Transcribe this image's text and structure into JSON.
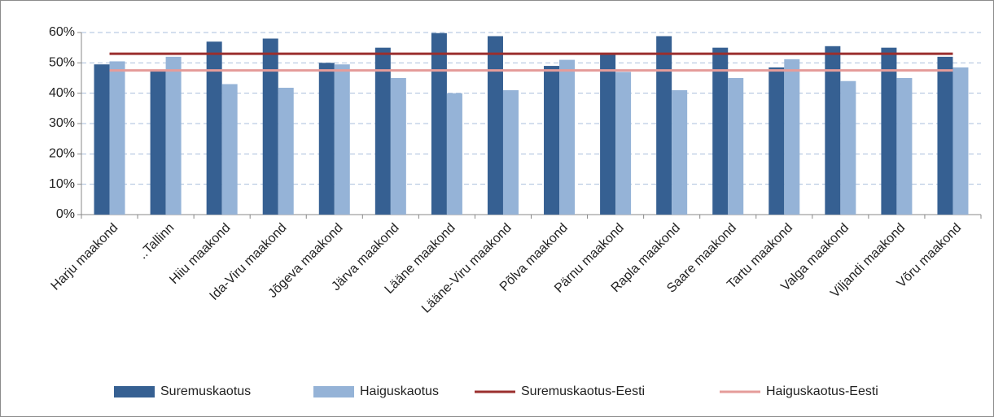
{
  "chart_data": {
    "type": "bar",
    "categories": [
      "Harju maakond",
      "..Tallinn",
      "Hiiu maakond",
      "Ida-Viru maakond",
      "Jõgeva maakond",
      "Järva maakond",
      "Lääne maakond",
      "Lääne-Viru maakond",
      "Põlva maakond",
      "Pärnu maakond",
      "Rapla maakond",
      "Saare maakond",
      "Tartu maakond",
      "Valga maakond",
      "Viljandi maakond",
      "Võru maakond"
    ],
    "series": [
      {
        "name": "Suremuskaotus",
        "type": "bar",
        "color": "#366092",
        "values": [
          49.5,
          47.5,
          57,
          58,
          50,
          55,
          59.8,
          58.8,
          49,
          53,
          58.8,
          55,
          48.5,
          55.5,
          55,
          52
        ]
      },
      {
        "name": "Haiguskaotus",
        "type": "bar",
        "color": "#95b3d7",
        "values": [
          50.5,
          52,
          43,
          41.8,
          49.5,
          45,
          40,
          41,
          51,
          47,
          41,
          45,
          51.2,
          44,
          45,
          48.5
        ]
      },
      {
        "name": "Suremuskaotus-Eesti",
        "type": "line",
        "color": "#9b2f2e",
        "values": [
          53,
          53,
          53,
          53,
          53,
          53,
          53,
          53,
          53,
          53,
          53,
          53,
          53,
          53,
          53,
          53
        ]
      },
      {
        "name": "Haiguskaotus-Eesti",
        "type": "line",
        "color": "#e59c9a",
        "values": [
          47.5,
          47.5,
          47.5,
          47.5,
          47.5,
          47.5,
          47.5,
          47.5,
          47.5,
          47.5,
          47.5,
          47.5,
          47.5,
          47.5,
          47.5,
          47.5
        ]
      }
    ],
    "ylim": [
      0,
      60
    ],
    "yticks": [
      {
        "value": 0,
        "label": "0%"
      },
      {
        "value": 10,
        "label": "10%"
      },
      {
        "value": 20,
        "label": "20%"
      },
      {
        "value": 30,
        "label": "30%"
      },
      {
        "value": 40,
        "label": "40%"
      },
      {
        "value": 50,
        "label": "50%"
      },
      {
        "value": 60,
        "label": "60%"
      }
    ],
    "grid": true,
    "legend": "bottom"
  }
}
